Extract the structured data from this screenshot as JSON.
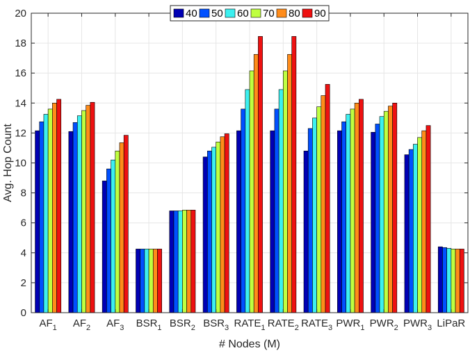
{
  "chart_data": {
    "type": "bar",
    "title": "",
    "xlabel": "# Nodes (M)",
    "ylabel": "Avg. Hop Count",
    "ylim": [
      0,
      20
    ],
    "yticks": [
      0,
      2,
      4,
      6,
      8,
      10,
      12,
      14,
      16,
      18,
      20
    ],
    "grid": true,
    "legend_position": "top-center",
    "categories": [
      {
        "base": "AF",
        "sub": "1"
      },
      {
        "base": "AF",
        "sub": "2"
      },
      {
        "base": "AF",
        "sub": "3"
      },
      {
        "base": "BSR",
        "sub": "1"
      },
      {
        "base": "BSR",
        "sub": "2"
      },
      {
        "base": "BSR",
        "sub": "3"
      },
      {
        "base": "RATE",
        "sub": "1"
      },
      {
        "base": "RATE",
        "sub": "2"
      },
      {
        "base": "RATE",
        "sub": "3"
      },
      {
        "base": "PWR",
        "sub": "1"
      },
      {
        "base": "PWR",
        "sub": "2"
      },
      {
        "base": "PWR",
        "sub": "3"
      },
      {
        "base": "LiPaR",
        "sub": ""
      }
    ],
    "series": [
      {
        "name": "40",
        "color": "#0000b4",
        "values": [
          12.15,
          12.1,
          8.8,
          4.25,
          6.8,
          10.4,
          12.15,
          12.15,
          10.8,
          12.15,
          12.05,
          10.55,
          4.4
        ]
      },
      {
        "name": "50",
        "color": "#0050ff",
        "values": [
          12.75,
          12.7,
          9.6,
          4.25,
          6.8,
          10.8,
          13.6,
          13.6,
          12.3,
          12.75,
          12.6,
          10.9,
          4.35
        ]
      },
      {
        "name": "60",
        "color": "#3cf0f0",
        "values": [
          13.25,
          13.15,
          10.2,
          4.25,
          6.8,
          11.05,
          14.9,
          14.9,
          13.0,
          13.25,
          13.1,
          11.25,
          4.3
        ]
      },
      {
        "name": "70",
        "color": "#bfff40",
        "values": [
          13.6,
          13.5,
          10.8,
          4.25,
          6.85,
          11.4,
          16.15,
          16.15,
          13.75,
          13.6,
          13.45,
          11.7,
          4.25
        ]
      },
      {
        "name": "80",
        "color": "#ff8c1a",
        "values": [
          14.0,
          13.85,
          11.35,
          4.25,
          6.85,
          11.75,
          17.25,
          17.25,
          14.5,
          14.0,
          13.8,
          12.15,
          4.25
        ]
      },
      {
        "name": "90",
        "color": "#ee1111",
        "values": [
          14.25,
          14.05,
          11.85,
          4.25,
          6.85,
          11.95,
          18.45,
          18.45,
          15.25,
          14.25,
          14.0,
          12.5,
          4.25
        ]
      }
    ]
  }
}
